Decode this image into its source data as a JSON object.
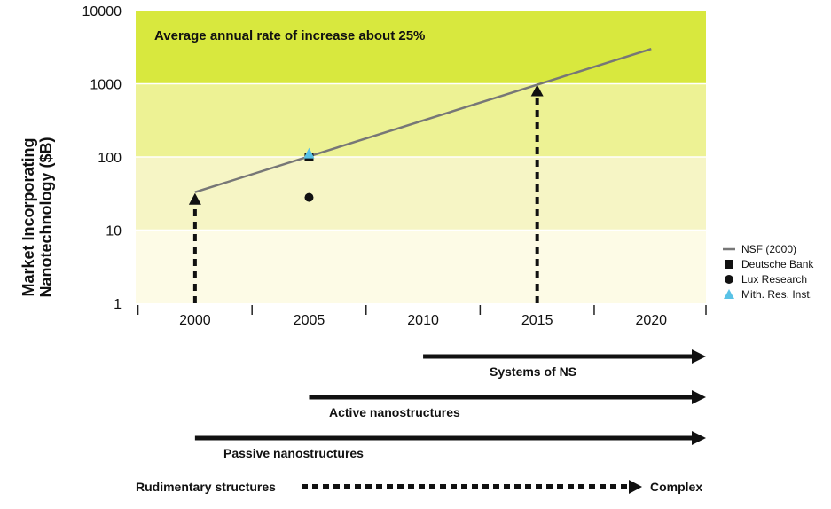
{
  "chart_data": {
    "type": "line",
    "title": "",
    "annotation": "Average annual rate of increase about 25%",
    "ylabel_line1": "Market Incorporating",
    "ylabel_line2": "Nanotechnology ($B)",
    "xlabel": "",
    "yscale": "log",
    "ylim": [
      1,
      10000
    ],
    "xlim": [
      1997.4,
      2022.4
    ],
    "x_ticks": [
      2000,
      2005,
      2010,
      2015,
      2020
    ],
    "x_tick_labels": [
      "2000",
      "2005",
      "2010",
      "2015",
      "2020"
    ],
    "y_ticks": [
      1,
      10,
      100,
      1000,
      10000
    ],
    "y_tick_labels": [
      "1",
      "10",
      "100",
      "1000",
      "10000"
    ],
    "bands": [
      {
        "from": 1,
        "to": 10,
        "color": "#fdfbe6"
      },
      {
        "from": 10,
        "to": 100,
        "color": "#f6f5c5"
      },
      {
        "from": 100,
        "to": 1000,
        "color": "#edf294"
      },
      {
        "from": 1000,
        "to": 10000,
        "color": "#d8e83e"
      }
    ],
    "series": [
      {
        "name": "NSF (2000)",
        "kind": "line",
        "color": "#777777",
        "x": [
          2000,
          2020
        ],
        "y": [
          33,
          3000
        ]
      },
      {
        "name": "Deutsche Bank",
        "kind": "square",
        "color": "#111111",
        "x": [
          2005
        ],
        "y": [
          100
        ]
      },
      {
        "name": "Lux Research",
        "kind": "circle",
        "color": "#111111",
        "x": [
          2005
        ],
        "y": [
          28
        ]
      },
      {
        "name": "Mith. Res. Inst.",
        "kind": "triangle",
        "color": "#59c2e6",
        "x": [
          2005
        ],
        "y": [
          110
        ]
      }
    ],
    "dashed_arrows": [
      {
        "x": 2000,
        "from": 1,
        "to": 33
      },
      {
        "x": 2015,
        "from": 1,
        "to": 1000
      }
    ],
    "stage_arrows": [
      {
        "label": "Systems of NS",
        "start": 2010
      },
      {
        "label": "Active nanostructures",
        "start": 2005
      },
      {
        "label": "Passive nanostructures",
        "start": 2000
      }
    ],
    "progression": {
      "left": "Rudimentary structures",
      "right": "Complex"
    },
    "legend_position": "right"
  }
}
